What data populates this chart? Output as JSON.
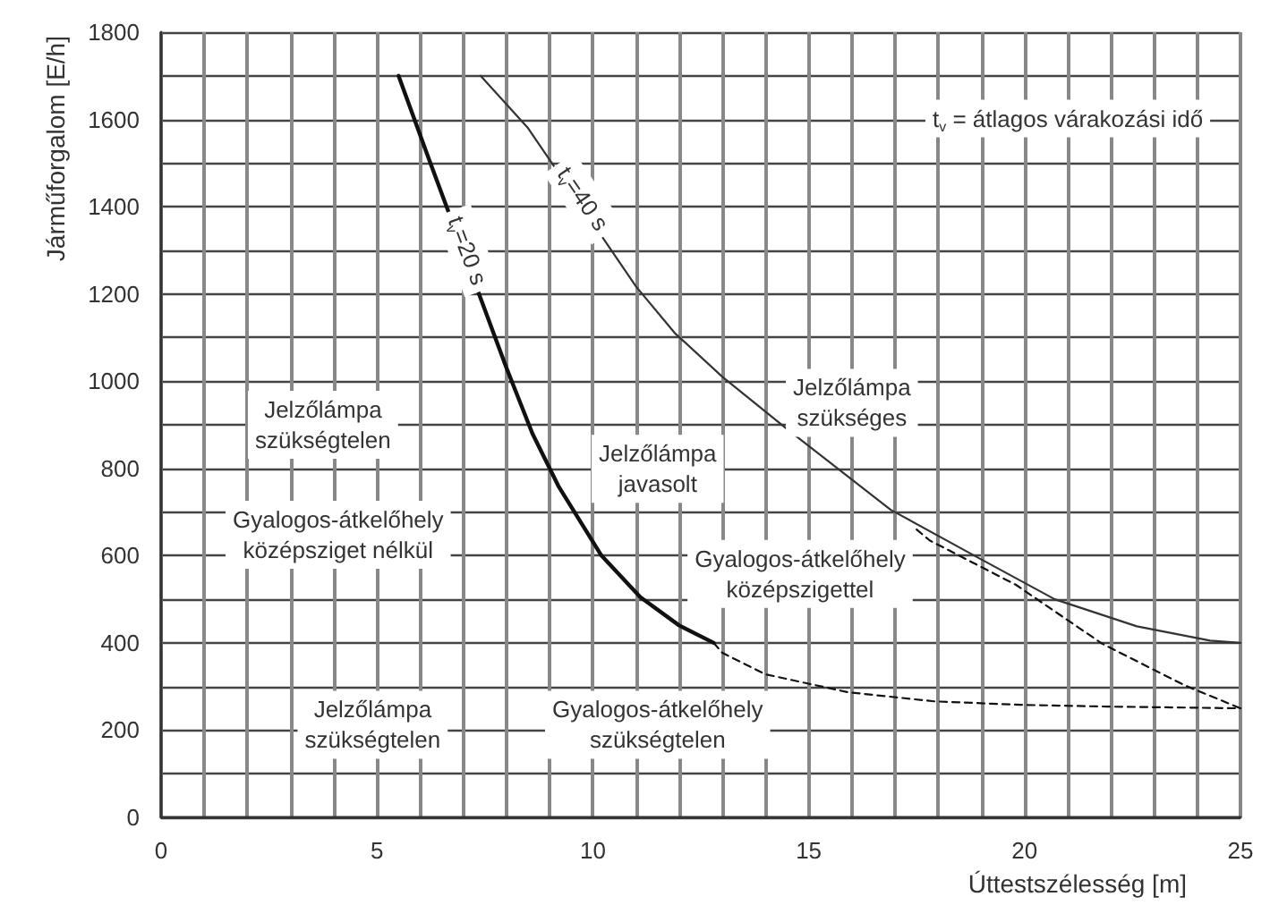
{
  "chart_data": {
    "type": "line",
    "xlabel": "Úttestszélesség [m]",
    "ylabel": "Járműforgalom [E/h]",
    "xlim": [
      0,
      25
    ],
    "ylim": [
      0,
      1800
    ],
    "xticks": [
      0,
      {
        "value": 1,
        "label": null
      },
      {
        "value": 2,
        "label": null
      },
      {
        "value": 3,
        "label": null
      },
      {
        "value": 4,
        "label": null
      },
      5,
      {
        "value": 6,
        "label": null
      },
      {
        "value": 7,
        "label": null
      },
      {
        "value": 8,
        "label": null
      },
      {
        "value": 9,
        "label": null
      },
      10,
      {
        "value": 11,
        "label": null
      },
      {
        "value": 12,
        "label": null
      },
      {
        "value": 13,
        "label": null
      },
      {
        "value": 14,
        "label": null
      },
      15,
      {
        "value": 16,
        "label": null
      },
      {
        "value": 17,
        "label": null
      },
      {
        "value": 18,
        "label": null
      },
      {
        "value": 19,
        "label": null
      },
      20,
      {
        "value": 21,
        "label": null
      },
      {
        "value": 22,
        "label": null
      },
      {
        "value": 23,
        "label": null
      },
      {
        "value": 24,
        "label": null
      },
      25
    ],
    "yticks": [
      0,
      {
        "value": 100,
        "label": null
      },
      200,
      {
        "value": 300,
        "label": null
      },
      400,
      {
        "value": 500,
        "label": null
      },
      600,
      {
        "value": 700,
        "label": null
      },
      800,
      {
        "value": 900,
        "label": null
      },
      1000,
      {
        "value": 1100,
        "label": null
      },
      1200,
      {
        "value": 1300,
        "label": null
      },
      1400,
      {
        "value": 1500,
        "label": null
      },
      1600,
      {
        "value": 1700,
        "label": null
      },
      1800
    ],
    "grid": true,
    "legend": false,
    "marker": "none",
    "series": [
      {
        "color": "#111111",
        "line_style": "solid",
        "x": [
          5.5,
          6.2,
          8.0,
          8.6,
          9.2,
          10.2,
          11.1,
          12.0,
          12.8
        ],
        "values": [
          1700,
          1510,
          1030,
          880,
          760,
          600,
          505,
          440,
          400
        ]
      },
      {
        "color": "#333333",
        "line_style": "solid",
        "x": [
          7.4,
          8.5,
          11.0,
          11.9,
          13.0,
          14.5,
          16.9,
          18.8,
          20.7,
          22.6,
          24.3,
          25
        ],
        "values": [
          1700,
          1580,
          1217,
          1110,
          1010,
          890,
          705,
          602,
          500,
          438,
          405,
          400
        ]
      },
      {
        "color": "#111111",
        "line_style": "dashed",
        "x": [
          12.8,
          13.0,
          14.0,
          15.9,
          17.9,
          19.9,
          21.9,
          25
        ],
        "values": [
          400,
          377,
          328,
          287,
          266,
          258,
          254,
          250
        ]
      },
      {
        "color": "#111111",
        "line_style": "dashed",
        "x": [
          17.5,
          17.8,
          19.8,
          21.8,
          23.7,
          25
        ],
        "values": [
          660,
          635,
          533,
          398,
          303,
          250
        ]
      }
    ],
    "annotations": [
      "t$_{v}$ = átlagos várakozási idő",
      "t$_{v}$=20 s",
      "t$_{v}$=40 s",
      "Jelzőlámpa\nszükségtelen",
      "Gyalogos-átkelőhely\nközépsziget nélkül",
      "Jelzőlámpa\njavasolt",
      "Jelzőlámpa\nszükséges",
      "Gyalogos-átkelőhely\nközépszigettel",
      "Jelzőlámpa\nszükségtelen",
      "Gyalogos-átkelőhely\nszükségtelen"
    ]
  }
}
